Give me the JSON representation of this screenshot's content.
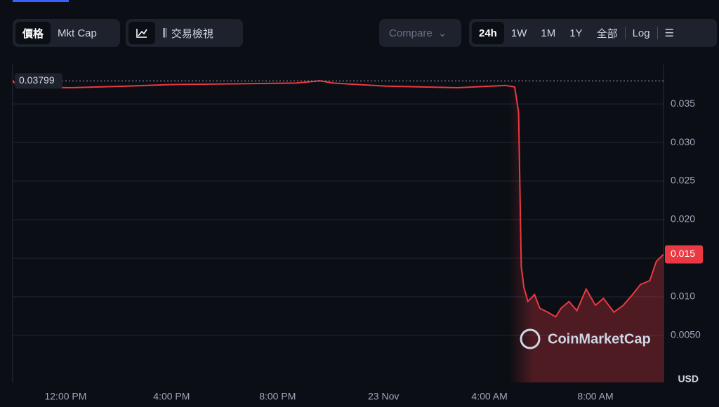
{
  "toolbar": {
    "metric_tabs": [
      "價格",
      "Mkt Cap"
    ],
    "view_tab": "交易檢視",
    "compare": "Compare",
    "ranges": [
      "24h",
      "1W",
      "1M",
      "1Y",
      "全部"
    ],
    "log": "Log"
  },
  "chart_data": {
    "type": "line",
    "color": "#ea3943",
    "x": [
      -2.0,
      -1.67,
      0.19,
      2.3,
      3.9,
      6.3,
      8.7,
      9.6,
      10.1,
      12.1,
      14.8,
      16.6,
      16.95,
      17.1,
      17.2,
      17.3,
      17.45,
      17.7,
      17.9,
      18.2,
      18.5,
      18.7,
      19.0,
      19.3,
      19.65,
      20.0,
      20.3,
      20.7,
      21.05,
      21.4,
      21.7,
      22.05,
      22.3,
      22.57
    ],
    "values": [
      0.0379,
      0.0372,
      0.0371,
      0.0373,
      0.0375,
      0.0376,
      0.0377,
      0.038,
      0.0377,
      0.0373,
      0.0371,
      0.0374,
      0.0372,
      0.0339,
      0.0139,
      0.0112,
      0.0094,
      0.0103,
      0.0085,
      0.008,
      0.0074,
      0.0085,
      0.0094,
      0.0082,
      0.011,
      0.0089,
      0.0098,
      0.008,
      0.0089,
      0.0103,
      0.0116,
      0.0121,
      0.0146,
      0.0155
    ],
    "high": 0.03799,
    "xlim": [
      -2.0,
      22.57
    ],
    "xticks": [
      {
        "value": 0,
        "label": "12:00 PM"
      },
      {
        "value": 4,
        "label": "4:00 PM"
      },
      {
        "value": 8,
        "label": "8:00 PM"
      },
      {
        "value": 12,
        "label": "23 Nov"
      },
      {
        "value": 16,
        "label": "4:00 AM"
      },
      {
        "value": 20,
        "label": "8:00 AM"
      }
    ],
    "ylim": [
      -0.0011,
      0.0401
    ],
    "yticks": [
      {
        "value": 0.005,
        "label": "0.0050"
      },
      {
        "value": 0.01,
        "label": "0.010"
      },
      0.015,
      {
        "value": 0.02,
        "label": "0.020"
      },
      0.025,
      {
        "value": 0.03,
        "label": "0.030"
      },
      0.035
    ],
    "grid": true,
    "currency": "USD",
    "watermark": "CoinMarketCap"
  }
}
